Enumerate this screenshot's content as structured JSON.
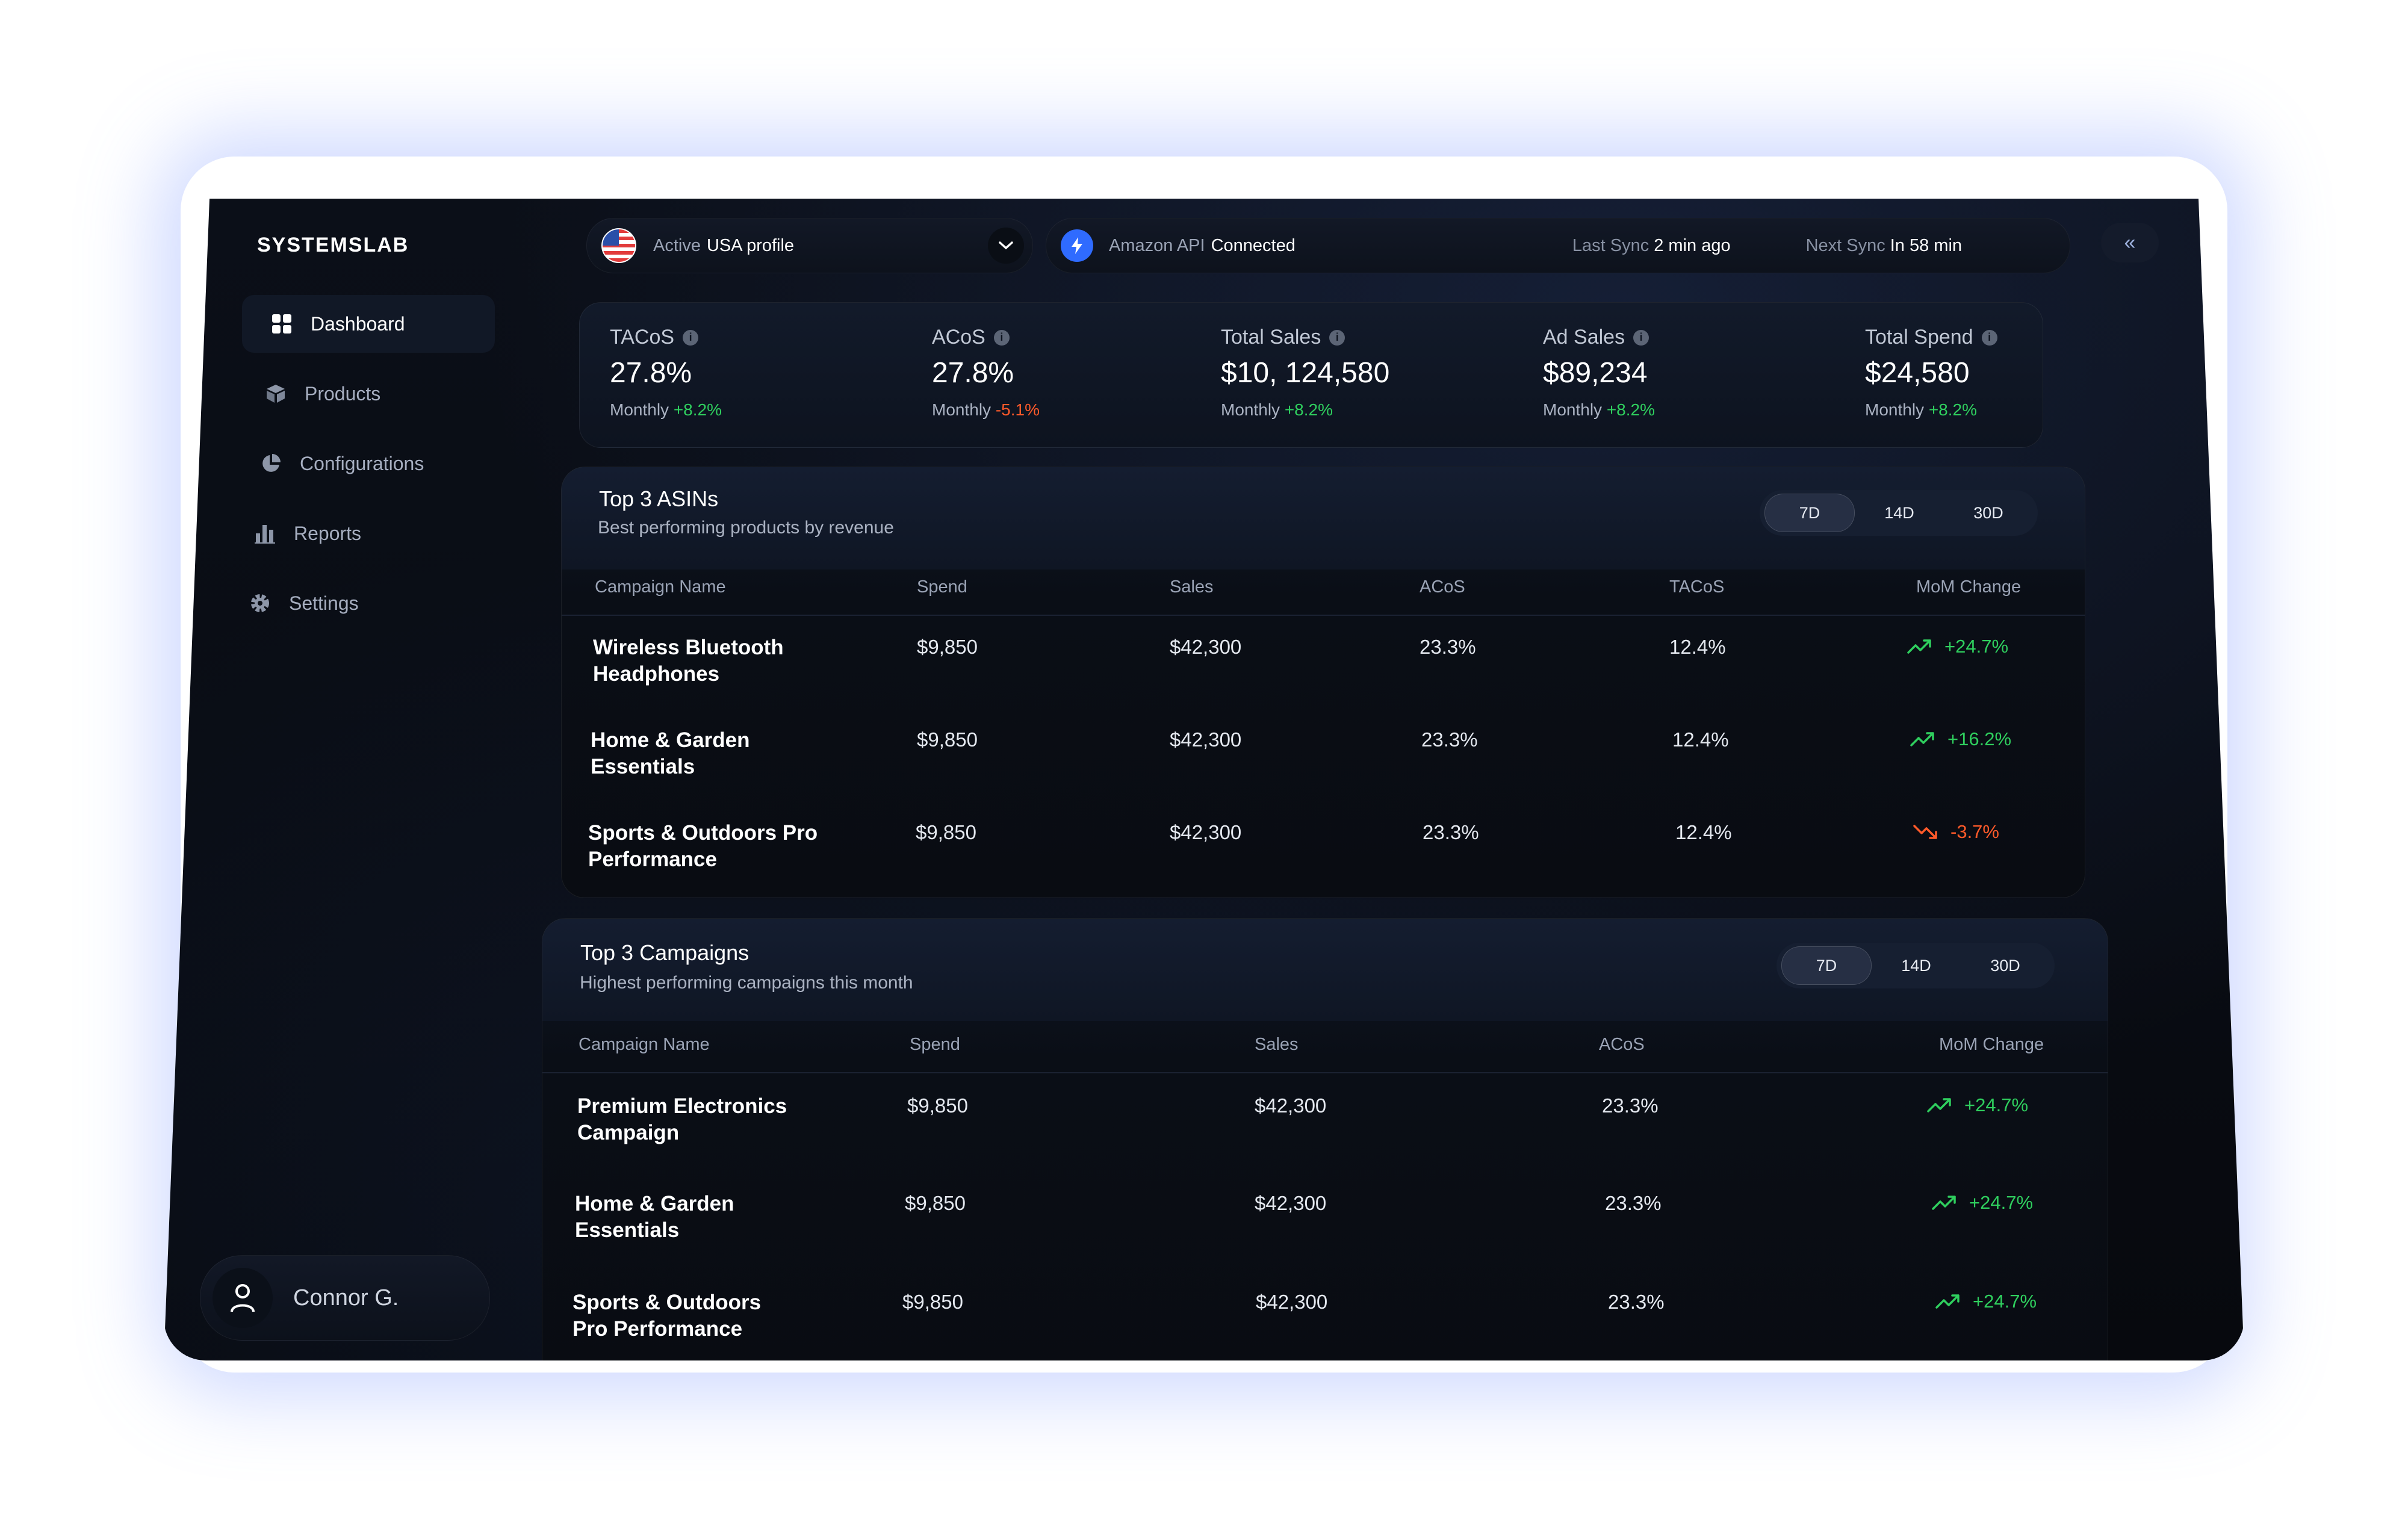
{
  "app": {
    "logo": "SYSTEMSLAB"
  },
  "topbar": {
    "profile_label": "Active",
    "profile_value": "USA profile",
    "api_label": "Amazon API",
    "api_status": "Connected",
    "last_sync_label": "Last Sync",
    "last_sync_value": "2 min ago",
    "next_sync_label": "Next Sync",
    "next_sync_value": "In 58 min",
    "collapse_glyph": "«"
  },
  "sidebar": {
    "items": [
      {
        "label": "Dashboard",
        "icon": "grid-icon"
      },
      {
        "label": "Products",
        "icon": "box-icon"
      },
      {
        "label": "Configurations",
        "icon": "pie-icon"
      },
      {
        "label": "Reports",
        "icon": "bar-chart-icon"
      },
      {
        "label": "Settings",
        "icon": "gear-icon"
      }
    ],
    "user": {
      "name": "Connor G."
    }
  },
  "kpis": [
    {
      "label": "TACoS",
      "value": "27.8%",
      "period": "Monthly",
      "change": "+8.2%",
      "trend": "up"
    },
    {
      "label": "ACoS",
      "value": "27.8%",
      "period": "Monthly",
      "change": "-5.1%",
      "trend": "down"
    },
    {
      "label": "Total Sales",
      "value": "$10, 124,580",
      "period": "Monthly",
      "change": "+8.2%",
      "trend": "up"
    },
    {
      "label": "Ad Sales",
      "value": "$89,234",
      "period": "Monthly",
      "change": "+8.2%",
      "trend": "up"
    },
    {
      "label": "Total Spend",
      "value": "$24,580",
      "period": "Monthly",
      "change": "+8.2%",
      "trend": "up"
    }
  ],
  "asins": {
    "title": "Top 3 ASINs",
    "subtitle": "Best performing products by revenue",
    "ranges": [
      "7D",
      "14D",
      "30D"
    ],
    "headers": [
      "Campaign Name",
      "Spend",
      "Sales",
      "ACoS",
      "TACoS",
      "MoM Change"
    ],
    "rows": [
      {
        "name_1": "Wireless Bluetooth",
        "name_2": "Headphones",
        "spend": "$9,850",
        "sales": "$42,300",
        "acos": "23.3%",
        "tacos": "12.4%",
        "mom": "+24.7%",
        "trend": "up"
      },
      {
        "name_1": "Home & Garden",
        "name_2": "Essentials",
        "spend": "$9,850",
        "sales": "$42,300",
        "acos": "23.3%",
        "tacos": "12.4%",
        "mom": "+16.2%",
        "trend": "up"
      },
      {
        "name_1": "Sports & Outdoors Pro",
        "name_2": "Performance",
        "spend": "$9,850",
        "sales": "$42,300",
        "acos": "23.3%",
        "tacos": "12.4%",
        "mom": "-3.7%",
        "trend": "down"
      }
    ]
  },
  "campaigns": {
    "title": "Top 3 Campaigns",
    "subtitle": "Highest performing campaigns this month",
    "ranges": [
      "7D",
      "14D",
      "30D"
    ],
    "headers": [
      "Campaign Name",
      "Spend",
      "Sales",
      "ACoS",
      "MoM Change"
    ],
    "rows": [
      {
        "name_1": "Premium Electronics",
        "name_2": "Campaign",
        "spend": "$9,850",
        "sales": "$42,300",
        "acos": "23.3%",
        "mom": "+24.7%",
        "trend": "up"
      },
      {
        "name_1": "Home & Garden",
        "name_2": "Essentials",
        "spend": "$9,850",
        "sales": "$42,300",
        "acos": "23.3%",
        "mom": "+24.7%",
        "trend": "up"
      },
      {
        "name_1": "Sports & Outdoors",
        "name_2": "Pro Performance",
        "spend": "$9,850",
        "sales": "$42,300",
        "acos": "23.3%",
        "mom": "+24.7%",
        "trend": "up"
      }
    ]
  },
  "colors": {
    "positive": "#2fcf5e",
    "negative": "#ff5a2a",
    "accent": "#2f6bff"
  }
}
